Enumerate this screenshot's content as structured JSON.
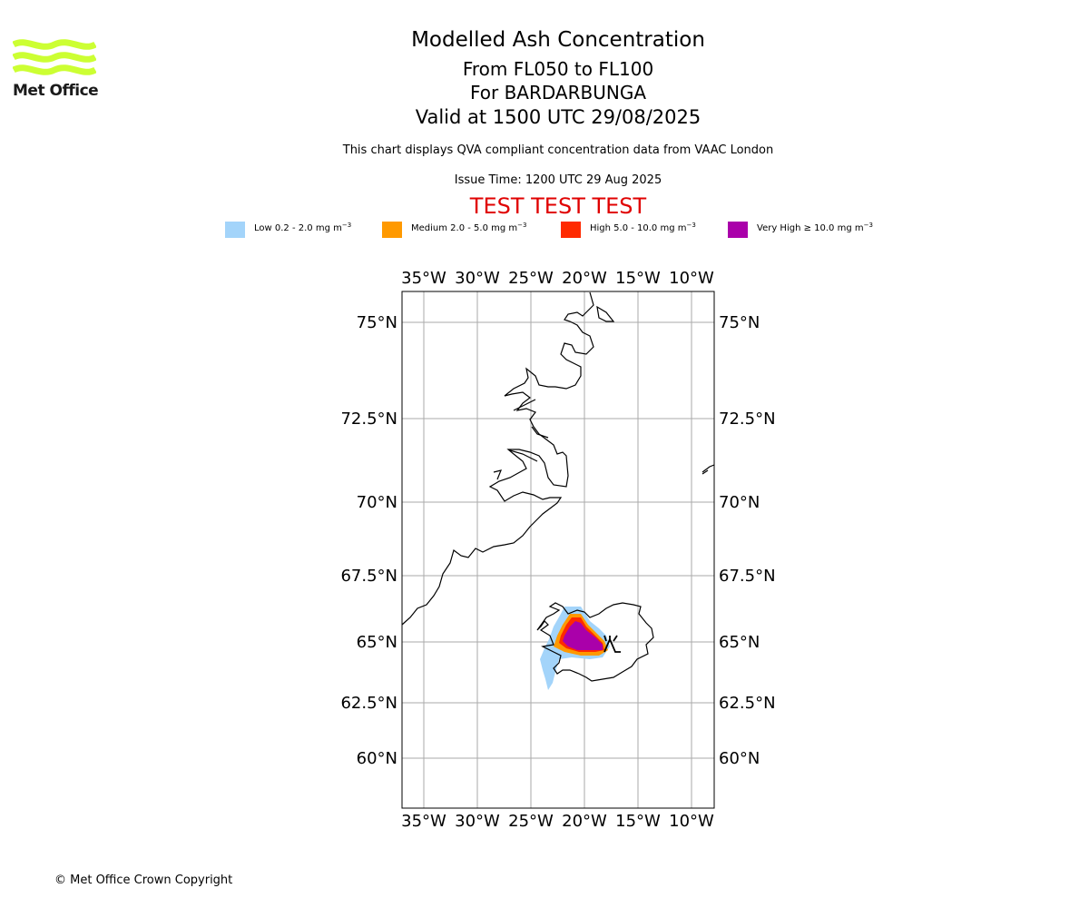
{
  "logo": {
    "text": "Met Office",
    "color": "#ccff33"
  },
  "header": {
    "title": "Modelled Ash Concentration",
    "levels": "From FL050 to FL100",
    "volcano": "For BARDARBUNGA",
    "valid": "Valid at 1500 UTC 29/08/2025",
    "note": "This chart displays QVA compliant concentration data from VAAC London",
    "issue": "Issue Time: 1200 UTC 29 Aug 2025",
    "test_banner": "TEST TEST TEST",
    "test_color": "#e00000"
  },
  "legend": [
    {
      "label": "Low 0.2 - 2.0 mg m",
      "sup": "−3",
      "color": "#a3d4fa"
    },
    {
      "label": "Medium 2.0 - 5.0 mg m",
      "sup": "−3",
      "color": "#ff9900"
    },
    {
      "label": "High 5.0 - 10.0 mg m",
      "sup": "−3",
      "color": "#ff2a00"
    },
    {
      "label": "Very High  ≥  10.0 mg m",
      "sup": "−3",
      "color": "#aa00aa"
    }
  ],
  "map": {
    "lon_labels": [
      "35°W",
      "30°W",
      "25°W",
      "20°W",
      "15°W",
      "10°W"
    ],
    "lat_labels": [
      "75°N",
      "72.5°N",
      "70°N",
      "67.5°N",
      "65°N",
      "62.5°N",
      "60°N"
    ],
    "grid_color": "#aaaaaa"
  },
  "footer": {
    "copyright": "© Met Office Crown Copyright"
  }
}
